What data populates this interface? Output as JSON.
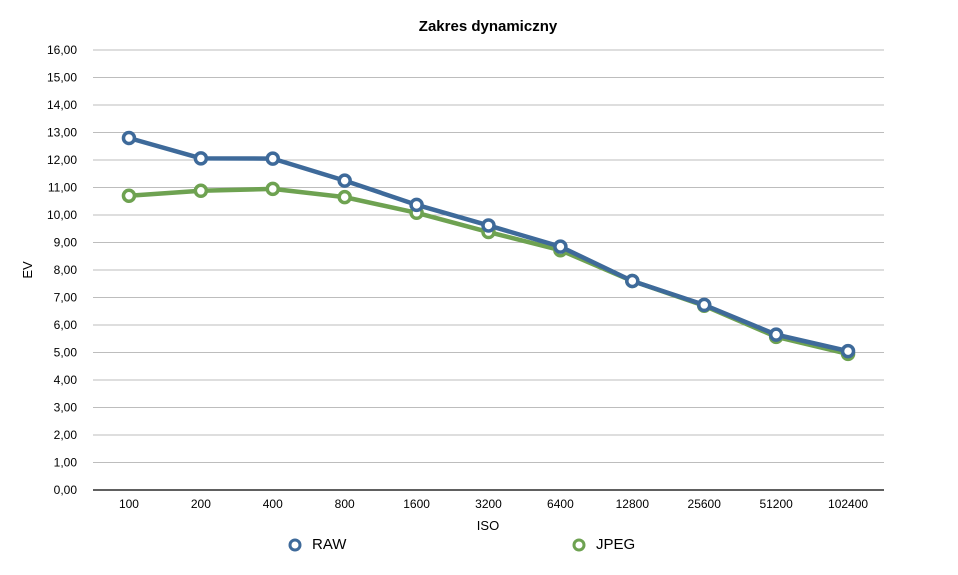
{
  "chart_data": {
    "type": "line",
    "title": "Zakres dynamiczny",
    "xlabel": "ISO",
    "ylabel": "EV",
    "categories": [
      "100",
      "200",
      "400",
      "800",
      "1600",
      "3200",
      "6400",
      "12800",
      "25600",
      "51200",
      "102400"
    ],
    "ylim": [
      0,
      16
    ],
    "yticks": [
      "0,00",
      "1,00",
      "2,00",
      "3,00",
      "4,00",
      "5,00",
      "6,00",
      "7,00",
      "8,00",
      "9,00",
      "10,00",
      "11,00",
      "12,00",
      "13,00",
      "14,00",
      "15,00",
      "16,00"
    ],
    "grid": true,
    "legend_position": "bottom",
    "series": [
      {
        "name": "RAW",
        "color": "#3E6A9A",
        "values": [
          12.8,
          12.06,
          12.05,
          11.25,
          10.37,
          9.62,
          8.85,
          7.6,
          6.73,
          5.65,
          5.05
        ]
      },
      {
        "name": "JPEG",
        "color": "#6EA251",
        "values": [
          10.7,
          10.88,
          10.95,
          10.65,
          10.08,
          9.38,
          8.72,
          7.6,
          6.7,
          5.57,
          4.95
        ]
      }
    ]
  }
}
